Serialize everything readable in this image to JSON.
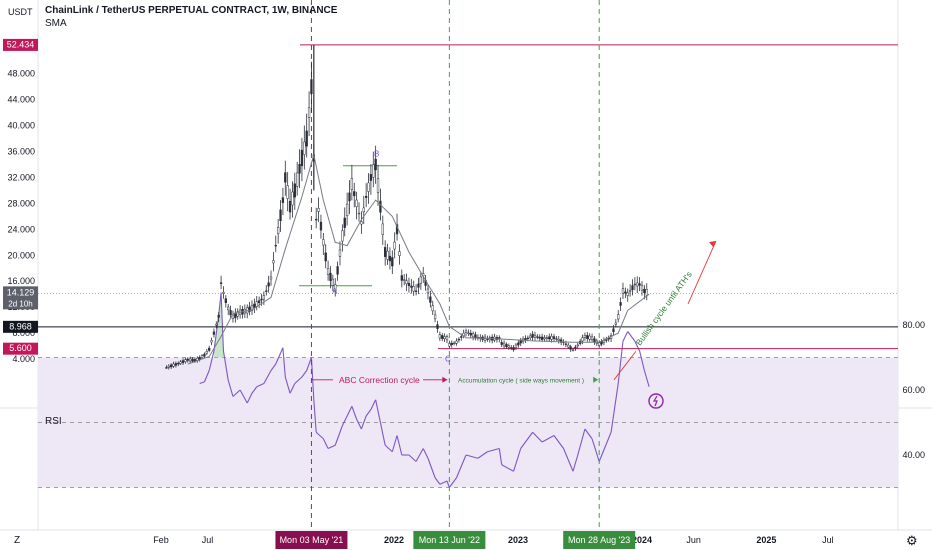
{
  "header": {
    "title": "ChainLink / TetherUS PERPETUAL CONTRACT, 1W, BINANCE",
    "indicator": "SMA",
    "currency": "USDT",
    "rsi_label": "RSI"
  },
  "controls": {
    "z_button": "Z",
    "settings_icon": "gear-icon"
  },
  "colors": {
    "candle": "#2a2e39",
    "sma": "#787b86",
    "red_line": "#c2185b",
    "green_line": "#43a047",
    "rsi_line": "#7e57c2",
    "rsi_band": "#ede7f6",
    "text_green": "#2e7d32",
    "arrow_red": "#e53935"
  },
  "chart_data": [
    {
      "type": "candlestick",
      "title": "ChainLink / TetherUS PERPETUAL CONTRACT, 1W, BINANCE",
      "ylabel": "USDT",
      "ylim": [
        0,
        52.434
      ],
      "y_ticks": [
        "4.000",
        "8.000",
        "12.000",
        "16.000",
        "20.000",
        "24.000",
        "28.000",
        "32.000",
        "36.000",
        "40.000",
        "44.000",
        "48.000"
      ],
      "x_ticks": [
        "Feb",
        "Jul",
        "2022",
        "2023",
        "2024",
        "Jun",
        "2025",
        "Jul"
      ],
      "series_close": [
        [
          "2020-03-02",
          2.7
        ],
        [
          "2020-04-06",
          3.3
        ],
        [
          "2020-05-04",
          3.9
        ],
        [
          "2020-05-25",
          3.8
        ],
        [
          "2020-06-08",
          4.1
        ],
        [
          "2020-06-22",
          4.6
        ],
        [
          "2020-07-06",
          5.5
        ],
        [
          "2020-07-20",
          8.0
        ],
        [
          "2020-08-03",
          10.6
        ],
        [
          "2020-08-10",
          15.7
        ],
        [
          "2020-08-17",
          14.2
        ],
        [
          "2020-08-31",
          11.8
        ],
        [
          "2020-09-14",
          10.5
        ],
        [
          "2020-10-05",
          11.2
        ],
        [
          "2020-10-26",
          11.5
        ],
        [
          "2020-11-09",
          11.9
        ],
        [
          "2020-11-23",
          12.5
        ],
        [
          "2020-12-14",
          13.5
        ],
        [
          "2021-01-04",
          16.5
        ],
        [
          "2021-01-18",
          21.5
        ],
        [
          "2021-02-08",
          28.5
        ],
        [
          "2021-02-15",
          32.0
        ],
        [
          "2021-03-01",
          27.5
        ],
        [
          "2021-03-15",
          30.0
        ],
        [
          "2021-04-05",
          35.0
        ],
        [
          "2021-04-19",
          38.0
        ],
        [
          "2021-05-03",
          46.0
        ],
        [
          "2021-05-10",
          35.0
        ],
        [
          "2021-05-17",
          25.5
        ],
        [
          "2021-05-24",
          27.0
        ],
        [
          "2021-06-07",
          22.0
        ],
        [
          "2021-06-21",
          17.5
        ],
        [
          "2021-07-12",
          15.0
        ],
        [
          "2021-08-02",
          23.0
        ],
        [
          "2021-08-16",
          27.0
        ],
        [
          "2021-08-30",
          31.0
        ],
        [
          "2021-09-13",
          28.0
        ],
        [
          "2021-09-27",
          25.0
        ],
        [
          "2021-10-11",
          29.0
        ],
        [
          "2021-10-25",
          32.0
        ],
        [
          "2021-11-08",
          34.0
        ],
        [
          "2021-11-22",
          27.5
        ],
        [
          "2021-12-06",
          20.5
        ],
        [
          "2021-12-27",
          19.0
        ],
        [
          "2022-01-10",
          24.0
        ],
        [
          "2022-01-24",
          16.5
        ],
        [
          "2022-02-14",
          15.5
        ],
        [
          "2022-03-07",
          14.5
        ],
        [
          "2022-03-28",
          17.0
        ],
        [
          "2022-04-11",
          14.5
        ],
        [
          "2022-05-02",
          10.5
        ],
        [
          "2022-05-16",
          7.5
        ],
        [
          "2022-06-06",
          7.2
        ],
        [
          "2022-06-13",
          6.2
        ],
        [
          "2022-07-04",
          6.6
        ],
        [
          "2022-08-01",
          8.2
        ],
        [
          "2022-09-05",
          7.3
        ],
        [
          "2022-10-03",
          7.1
        ],
        [
          "2022-11-07",
          7.2
        ],
        [
          "2022-11-14",
          6.4
        ],
        [
          "2022-12-19",
          5.6
        ],
        [
          "2023-01-09",
          6.7
        ],
        [
          "2023-02-13",
          7.6
        ],
        [
          "2023-03-13",
          7.2
        ],
        [
          "2023-04-17",
          7.3
        ],
        [
          "2023-05-15",
          6.6
        ],
        [
          "2023-06-12",
          5.4
        ],
        [
          "2023-06-26",
          6.1
        ],
        [
          "2023-07-17",
          7.5
        ],
        [
          "2023-08-07",
          7.2
        ],
        [
          "2023-08-28",
          6.3
        ],
        [
          "2023-10-02",
          7.4
        ],
        [
          "2023-10-23",
          10.5
        ],
        [
          "2023-11-06",
          14.5
        ],
        [
          "2023-11-20",
          14.0
        ],
        [
          "2023-12-11",
          15.5
        ],
        [
          "2023-12-25",
          15.5
        ],
        [
          "2024-01-08",
          14.5
        ],
        [
          "2024-01-22",
          14.1
        ]
      ],
      "sma_values": [
        [
          "2020-05-04",
          3.2
        ],
        [
          "2020-07-06",
          4.4
        ],
        [
          "2020-08-10",
          7.5
        ],
        [
          "2020-09-14",
          11.0
        ],
        [
          "2020-11-09",
          11.6
        ],
        [
          "2021-01-04",
          13.5
        ],
        [
          "2021-02-15",
          21.0
        ],
        [
          "2021-04-05",
          29.0
        ],
        [
          "2021-05-10",
          35.5
        ],
        [
          "2021-06-07",
          28.5
        ],
        [
          "2021-07-12",
          22.0
        ],
        [
          "2021-08-16",
          21.5
        ],
        [
          "2021-09-27",
          25.5
        ],
        [
          "2021-11-08",
          28.5
        ],
        [
          "2021-12-27",
          26.0
        ],
        [
          "2022-02-14",
          20.5
        ],
        [
          "2022-04-11",
          15.5
        ],
        [
          "2022-05-16",
          12.5
        ],
        [
          "2022-06-13",
          9.0
        ],
        [
          "2022-08-01",
          7.3
        ],
        [
          "2022-11-07",
          7.1
        ],
        [
          "2023-02-13",
          6.8
        ],
        [
          "2023-06-12",
          6.6
        ],
        [
          "2023-08-28",
          6.6
        ],
        [
          "2023-10-23",
          8.0
        ],
        [
          "2023-11-20",
          11.5
        ],
        [
          "2024-01-22",
          14.0
        ]
      ],
      "price_labels": {
        "high": "52.434",
        "current": "14.129",
        "countdown": "2d 10h",
        "support": "8.968",
        "low": "5.600"
      },
      "horizontal_lines": [
        52.434,
        8.968,
        5.6,
        14.129
      ],
      "vertical_markers": [
        {
          "date": "2021-05-03",
          "label": "Mon 03 May '21"
        },
        {
          "date": "2022-06-13",
          "label": "Mon 13 Jun '22"
        },
        {
          "date": "2023-08-28",
          "label": "Mon 28 Aug '23"
        }
      ],
      "annotations": [
        {
          "text": "ABC Correction cycle"
        },
        {
          "text": "Accumulation cycle ( side ways movement )"
        },
        {
          "text": "Bullish cycle until ATH's"
        },
        {
          "text": "A"
        },
        {
          "text": "B"
        },
        {
          "text": "C"
        }
      ]
    },
    {
      "type": "line",
      "title": "RSI",
      "y_ticks": [
        "40.00",
        "60.00",
        "80.00"
      ],
      "bands": [
        30,
        50,
        70
      ],
      "ylim": [
        25,
        95
      ],
      "values": [
        [
          "2020-06-08",
          62
        ],
        [
          "2020-06-22",
          62.5
        ],
        [
          "2020-07-06",
          66
        ],
        [
          "2020-07-20",
          72
        ],
        [
          "2020-08-03",
          83
        ],
        [
          "2020-08-10",
          90
        ],
        [
          "2020-08-17",
          72
        ],
        [
          "2020-08-31",
          63
        ],
        [
          "2020-09-14",
          58
        ],
        [
          "2020-10-05",
          60
        ],
        [
          "2020-10-26",
          56
        ],
        [
          "2020-11-09",
          59
        ],
        [
          "2020-11-23",
          61
        ],
        [
          "2020-12-14",
          62
        ],
        [
          "2021-01-04",
          66
        ],
        [
          "2021-01-18",
          68
        ],
        [
          "2021-02-08",
          73
        ],
        [
          "2021-02-15",
          64
        ],
        [
          "2021-03-01",
          59
        ],
        [
          "2021-03-15",
          62
        ],
        [
          "2021-04-05",
          64
        ],
        [
          "2021-04-19",
          66
        ],
        [
          "2021-05-03",
          70
        ],
        [
          "2021-05-10",
          57
        ],
        [
          "2021-05-17",
          47
        ],
        [
          "2021-06-07",
          45
        ],
        [
          "2021-06-21",
          42
        ],
        [
          "2021-07-12",
          43
        ],
        [
          "2021-08-02",
          49
        ],
        [
          "2021-08-16",
          52
        ],
        [
          "2021-08-30",
          55
        ],
        [
          "2021-09-13",
          51
        ],
        [
          "2021-09-27",
          48
        ],
        [
          "2021-10-11",
          52
        ],
        [
          "2021-10-25",
          54
        ],
        [
          "2021-11-08",
          57
        ],
        [
          "2021-11-22",
          50
        ],
        [
          "2021-12-06",
          43
        ],
        [
          "2021-12-27",
          41
        ],
        [
          "2022-01-10",
          46
        ],
        [
          "2022-01-24",
          40
        ],
        [
          "2022-02-14",
          40
        ],
        [
          "2022-03-07",
          38
        ],
        [
          "2022-03-28",
          42
        ],
        [
          "2022-04-11",
          39
        ],
        [
          "2022-05-02",
          33
        ],
        [
          "2022-05-16",
          31
        ],
        [
          "2022-06-06",
          32
        ],
        [
          "2022-06-13",
          30
        ],
        [
          "2022-07-04",
          33
        ],
        [
          "2022-08-01",
          40
        ],
        [
          "2022-09-05",
          39
        ],
        [
          "2022-10-03",
          41
        ],
        [
          "2022-11-07",
          42
        ],
        [
          "2022-11-14",
          37
        ],
        [
          "2022-12-19",
          35
        ],
        [
          "2023-01-09",
          42
        ],
        [
          "2023-02-13",
          47
        ],
        [
          "2023-03-13",
          44
        ],
        [
          "2023-04-17",
          46
        ],
        [
          "2023-05-15",
          42
        ],
        [
          "2023-06-12",
          35
        ],
        [
          "2023-06-26",
          40
        ],
        [
          "2023-07-17",
          48
        ],
        [
          "2023-08-07",
          45
        ],
        [
          "2023-08-28",
          38
        ],
        [
          "2023-10-02",
          47
        ],
        [
          "2023-10-23",
          62
        ],
        [
          "2023-11-06",
          75
        ],
        [
          "2023-11-20",
          78
        ],
        [
          "2023-12-11",
          75
        ],
        [
          "2023-12-25",
          72
        ],
        [
          "2024-01-08",
          66
        ],
        [
          "2024-01-22",
          61
        ]
      ]
    }
  ]
}
